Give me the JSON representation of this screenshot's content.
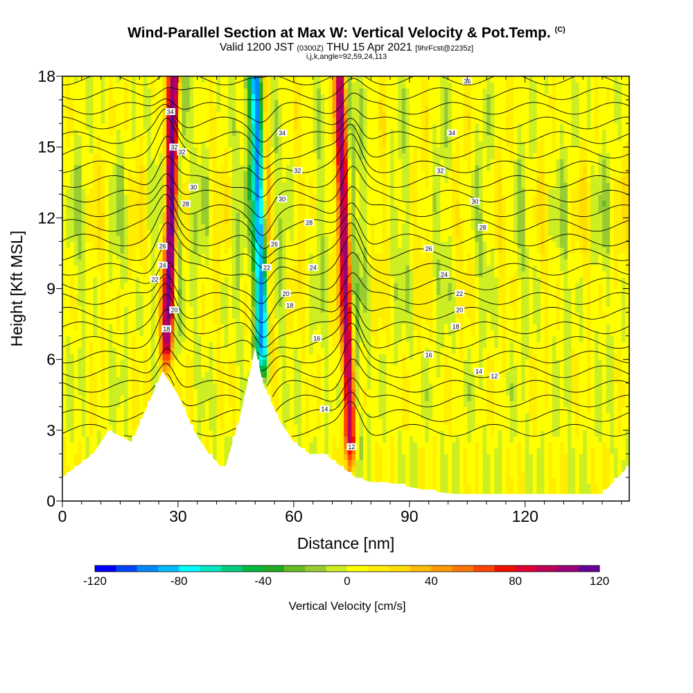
{
  "header": {
    "title": "Wind-Parallel Section at Max W: Vertical Velocity & Pot.Temp.",
    "title_copyright": "(C)",
    "subtitle_a": "Valid 1200 JST ",
    "subtitle_b": "(0300Z)",
    "subtitle_c": " THU 15 Apr 2021 ",
    "subtitle_d": "[9hrFcst@2235z]",
    "subtitle2": "i,j,k,angle=92,59,24,113"
  },
  "chart_data": {
    "type": "heatmap",
    "title": "Wind-Parallel Section at Max W: Vertical Velocity & Pot.Temp.",
    "xlabel": "Distance [nm]",
    "ylabel": "Height [Kft MSL]",
    "xlim": [
      0,
      147
    ],
    "ylim": [
      0,
      18
    ],
    "xticks": [
      0,
      30,
      60,
      90,
      120
    ],
    "yticks": [
      0,
      3,
      6,
      9,
      12,
      15,
      18
    ],
    "colorbar": {
      "label": "Vertical Velocity [cm/s]",
      "range": [
        -120,
        120
      ],
      "ticks": [
        -120,
        -80,
        -40,
        0,
        40,
        80,
        120
      ],
      "colors": [
        "#0000ff",
        "#0044ff",
        "#0088ff",
        "#00bbff",
        "#00ffff",
        "#00e6c0",
        "#00cc80",
        "#00b840",
        "#20aa20",
        "#66bb22",
        "#99cc33",
        "#ccee22",
        "#ffff00",
        "#ffee00",
        "#ffdd00",
        "#ffbb00",
        "#ff9900",
        "#ff7700",
        "#ff4400",
        "#ee1100",
        "#dd0033",
        "#bb0055",
        "#990077",
        "#660099"
      ]
    },
    "terrain": {
      "x": [
        0,
        8,
        12,
        18,
        22,
        26,
        30,
        34,
        38,
        42,
        46,
        50,
        52,
        56,
        60,
        64,
        68,
        72,
        76,
        80,
        84,
        90,
        96,
        102,
        110,
        120,
        130,
        140,
        147
      ],
      "height": [
        1.0,
        2.0,
        3.0,
        2.5,
        4.0,
        5.5,
        4.5,
        3.0,
        2.0,
        1.3,
        3.5,
        6.5,
        5.0,
        3.5,
        2.5,
        2.0,
        2.0,
        1.5,
        1.0,
        0.8,
        0.8,
        0.6,
        0.4,
        0.3,
        0.3,
        0.3,
        0.3,
        0.3,
        1.5
      ]
    },
    "updrafts": [
      {
        "x_base": 27,
        "x_top": 29,
        "strength": 110
      },
      {
        "x_base": 52,
        "x_top": 50,
        "strength": -110
      },
      {
        "x_base": 75,
        "x_top": 72,
        "strength": 90
      }
    ],
    "isentropes": {
      "labels": [
        12,
        14,
        16,
        18,
        20,
        22,
        24,
        26,
        28,
        30,
        32,
        34,
        36
      ],
      "label_positions": [
        {
          "value": 36,
          "x": 105,
          "y": 17.8
        },
        {
          "value": 34,
          "x": 57,
          "y": 15.6
        },
        {
          "value": 34,
          "x": 101,
          "y": 15.6
        },
        {
          "value": 32,
          "x": 31,
          "y": 14.8
        },
        {
          "value": 32,
          "x": 61,
          "y": 14.0
        },
        {
          "value": 32,
          "x": 98,
          "y": 14.0
        },
        {
          "value": 30,
          "x": 57,
          "y": 12.8
        },
        {
          "value": 30,
          "x": 107,
          "y": 12.7
        },
        {
          "value": 28,
          "x": 64,
          "y": 11.8
        },
        {
          "value": 28,
          "x": 109,
          "y": 11.6
        },
        {
          "value": 26,
          "x": 55,
          "y": 10.9
        },
        {
          "value": 26,
          "x": 95,
          "y": 10.7
        },
        {
          "value": 24,
          "x": 65,
          "y": 9.9
        },
        {
          "value": 24,
          "x": 99,
          "y": 9.6
        },
        {
          "value": 22,
          "x": 53,
          "y": 9.9
        },
        {
          "value": 22,
          "x": 103,
          "y": 8.8
        },
        {
          "value": 20,
          "x": 58,
          "y": 8.8
        },
        {
          "value": 20,
          "x": 103,
          "y": 8.1
        },
        {
          "value": 18,
          "x": 27,
          "y": 7.3
        },
        {
          "value": 18,
          "x": 59,
          "y": 8.3
        },
        {
          "value": 18,
          "x": 102,
          "y": 7.4
        },
        {
          "value": 16,
          "x": 66,
          "y": 6.9
        },
        {
          "value": 16,
          "x": 95,
          "y": 6.2
        },
        {
          "value": 14,
          "x": 68,
          "y": 3.9
        },
        {
          "value": 14,
          "x": 108,
          "y": 5.5
        },
        {
          "value": 12,
          "x": 75,
          "y": 2.3
        },
        {
          "value": 12,
          "x": 112,
          "y": 5.3
        }
      ],
      "left_labels": [
        {
          "value": 34,
          "x": 28,
          "y": 16.5
        },
        {
          "value": 32,
          "x": 29,
          "y": 15.0
        },
        {
          "value": 30,
          "x": 34,
          "y": 13.3
        },
        {
          "value": 28,
          "x": 32,
          "y": 12.6
        },
        {
          "value": 26,
          "x": 26,
          "y": 10.8
        },
        {
          "value": 24,
          "x": 26,
          "y": 10.0
        },
        {
          "value": 22,
          "x": 24,
          "y": 9.4
        },
        {
          "value": 20,
          "x": 29,
          "y": 8.1
        }
      ]
    }
  }
}
